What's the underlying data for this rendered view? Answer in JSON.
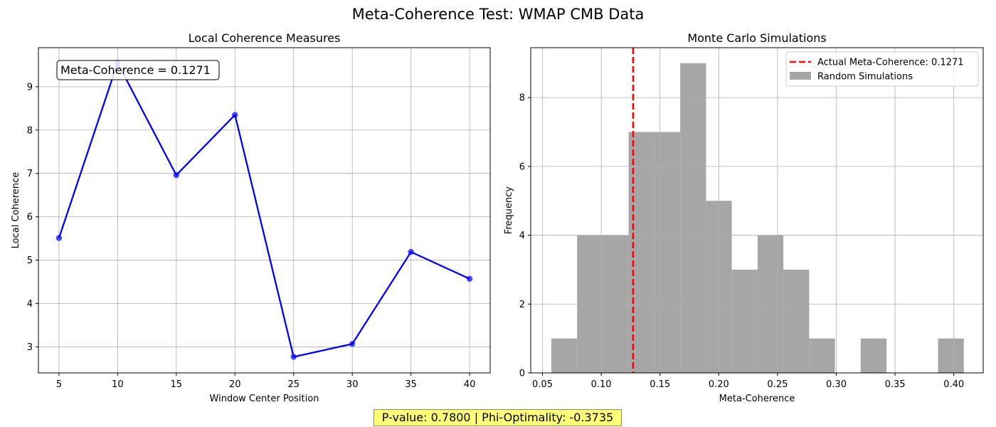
{
  "figure": {
    "suptitle": "Meta-Coherence Test: WMAP CMB Data",
    "footer": "P-value: 0.7800 | Phi-Optimality: -0.3735"
  },
  "chart_data": [
    {
      "type": "line",
      "title": "Local Coherence Measures",
      "xlabel": "Window Center Position",
      "ylabel": "Local Coherence",
      "x": [
        5,
        10,
        15,
        20,
        25,
        30,
        35,
        40
      ],
      "series": [
        {
          "values": [
            5.51,
            9.55,
            6.96,
            8.35,
            2.77,
            3.07,
            5.19,
            4.57
          ],
          "color": "#0000ff"
        }
      ],
      "xlim": [
        3.25,
        41.75
      ],
      "ylim": [
        2.4,
        9.9
      ],
      "xticks": [
        5,
        10,
        15,
        20,
        25,
        30,
        35,
        40
      ],
      "yticks": [
        3,
        4,
        5,
        6,
        7,
        8,
        9
      ],
      "grid": true,
      "annotation": "Meta-Coherence = 0.1271"
    },
    {
      "type": "bar",
      "subtype": "histogram",
      "title": "Monte Carlo Simulations",
      "xlabel": "Meta-Coherence",
      "ylabel": "Frequency",
      "bin_start": 0.0575,
      "bin_width": 0.02194,
      "counts": [
        1,
        4,
        4,
        7,
        7,
        9,
        5,
        3,
        4,
        3,
        1,
        0,
        1,
        0,
        0,
        1
      ],
      "bar_color": "#a6a6a6",
      "xlim": [
        0.04,
        0.425
      ],
      "ylim": [
        0,
        9.45
      ],
      "xticks": [
        0.05,
        0.1,
        0.15,
        0.2,
        0.25,
        0.3,
        0.35,
        0.4
      ],
      "xtick_labels": [
        "0.05",
        "0.10",
        "0.15",
        "0.20",
        "0.25",
        "0.30",
        "0.35",
        "0.40"
      ],
      "yticks": [
        0,
        2,
        4,
        6,
        8
      ],
      "grid": true,
      "vline": {
        "x": 0.1271,
        "color": "#ff0000",
        "style": "dashed"
      },
      "legend": {
        "position": "top-right",
        "entries": [
          {
            "label": "Actual Meta-Coherence: 0.1271",
            "kind": "dashed-line",
            "color": "#ff0000"
          },
          {
            "label": "Random Simulations",
            "kind": "patch",
            "color": "#a6a6a6"
          }
        ]
      }
    }
  ]
}
